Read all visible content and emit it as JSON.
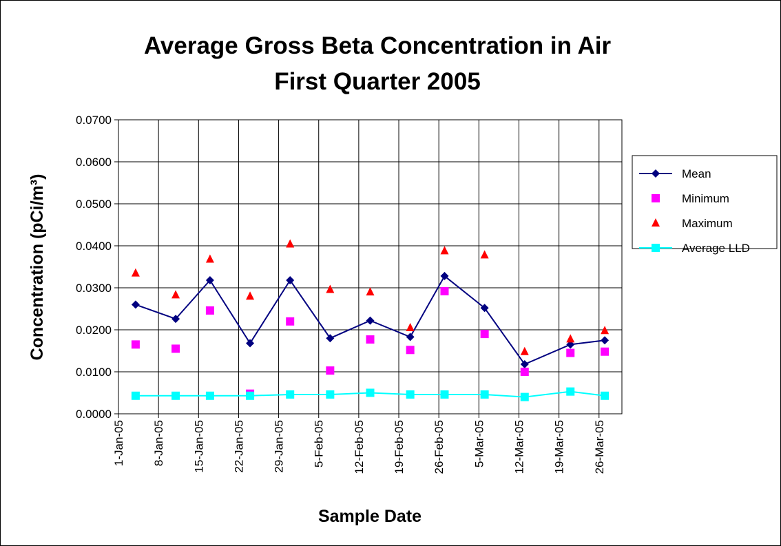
{
  "chart_data": {
    "type": "line",
    "title": "Average Gross Beta Concentration in Air",
    "subtitle": "First Quarter 2005",
    "x_label": "Sample Date",
    "y_label": "Concentration (pCi/m³)",
    "x": [
      "2005-01-04",
      "2005-01-11",
      "2005-01-17",
      "2005-01-24",
      "2005-01-31",
      "2005-02-07",
      "2005-02-14",
      "2005-02-21",
      "2005-02-27",
      "2005-03-06",
      "2005-03-13",
      "2005-03-21",
      "2005-03-27"
    ],
    "series": [
      {
        "name": "Mean",
        "color": "#000080",
        "line": true,
        "marker": "diamond",
        "values": [
          0.026,
          0.0226,
          0.0318,
          0.0168,
          0.0318,
          0.018,
          0.0222,
          0.0183,
          0.0328,
          0.0252,
          0.0118,
          0.0165,
          0.0175
        ]
      },
      {
        "name": "Minimum",
        "color": "#ff00ff",
        "line": false,
        "marker": "square",
        "values": [
          0.0165,
          0.0155,
          0.0246,
          0.0048,
          0.022,
          0.0103,
          0.0177,
          0.0152,
          0.0292,
          0.019,
          0.01,
          0.0145,
          0.0148
        ]
      },
      {
        "name": "Maximum",
        "color": "#ff0000",
        "line": false,
        "marker": "triangle",
        "values": [
          0.0335,
          0.0283,
          0.0368,
          0.028,
          0.0404,
          0.0296,
          0.029,
          0.0205,
          0.0388,
          0.0378,
          0.0148,
          0.0178,
          0.0198
        ]
      },
      {
        "name": "Average LLD",
        "color": "#00ffff",
        "line": true,
        "marker": "square",
        "values": [
          0.0043,
          0.0043,
          0.0043,
          0.0043,
          0.0046,
          0.0046,
          0.005,
          0.0046,
          0.0046,
          0.0046,
          0.004,
          0.0053,
          0.0043
        ]
      }
    ],
    "xlim": [
      "2005-01-01",
      "2005-03-30"
    ],
    "xticks": [
      {
        "value": "2005-01-01",
        "label": "1-Jan-05"
      },
      {
        "value": "2005-01-08",
        "label": "8-Jan-05"
      },
      {
        "value": "2005-01-15",
        "label": "15-Jan-05"
      },
      {
        "value": "2005-01-22",
        "label": "22-Jan-05"
      },
      {
        "value": "2005-01-29",
        "label": "29-Jan-05"
      },
      {
        "value": "2005-02-05",
        "label": "5-Feb-05"
      },
      {
        "value": "2005-02-12",
        "label": "12-Feb-05"
      },
      {
        "value": "2005-02-19",
        "label": "19-Feb-05"
      },
      {
        "value": "2005-02-26",
        "label": "26-Feb-05"
      },
      {
        "value": "2005-03-05",
        "label": "5-Mar-05"
      },
      {
        "value": "2005-03-12",
        "label": "12-Mar-05"
      },
      {
        "value": "2005-03-19",
        "label": "19-Mar-05"
      },
      {
        "value": "2005-03-26",
        "label": "26-Mar-05"
      }
    ],
    "ylim": [
      0,
      0.07
    ],
    "yticks": [
      {
        "value": 0,
        "label": "0.0000"
      },
      {
        "value": 0.01,
        "label": "0.0100"
      },
      {
        "value": 0.02,
        "label": "0.0200"
      },
      {
        "value": 0.03,
        "label": "0.0300"
      },
      {
        "value": 0.04,
        "label": "0.0400"
      },
      {
        "value": 0.05,
        "label": "0.0500"
      },
      {
        "value": 0.06,
        "label": "0.0600"
      },
      {
        "value": 0.07,
        "label": "0.0700"
      }
    ],
    "grid": true,
    "legend": "right"
  }
}
